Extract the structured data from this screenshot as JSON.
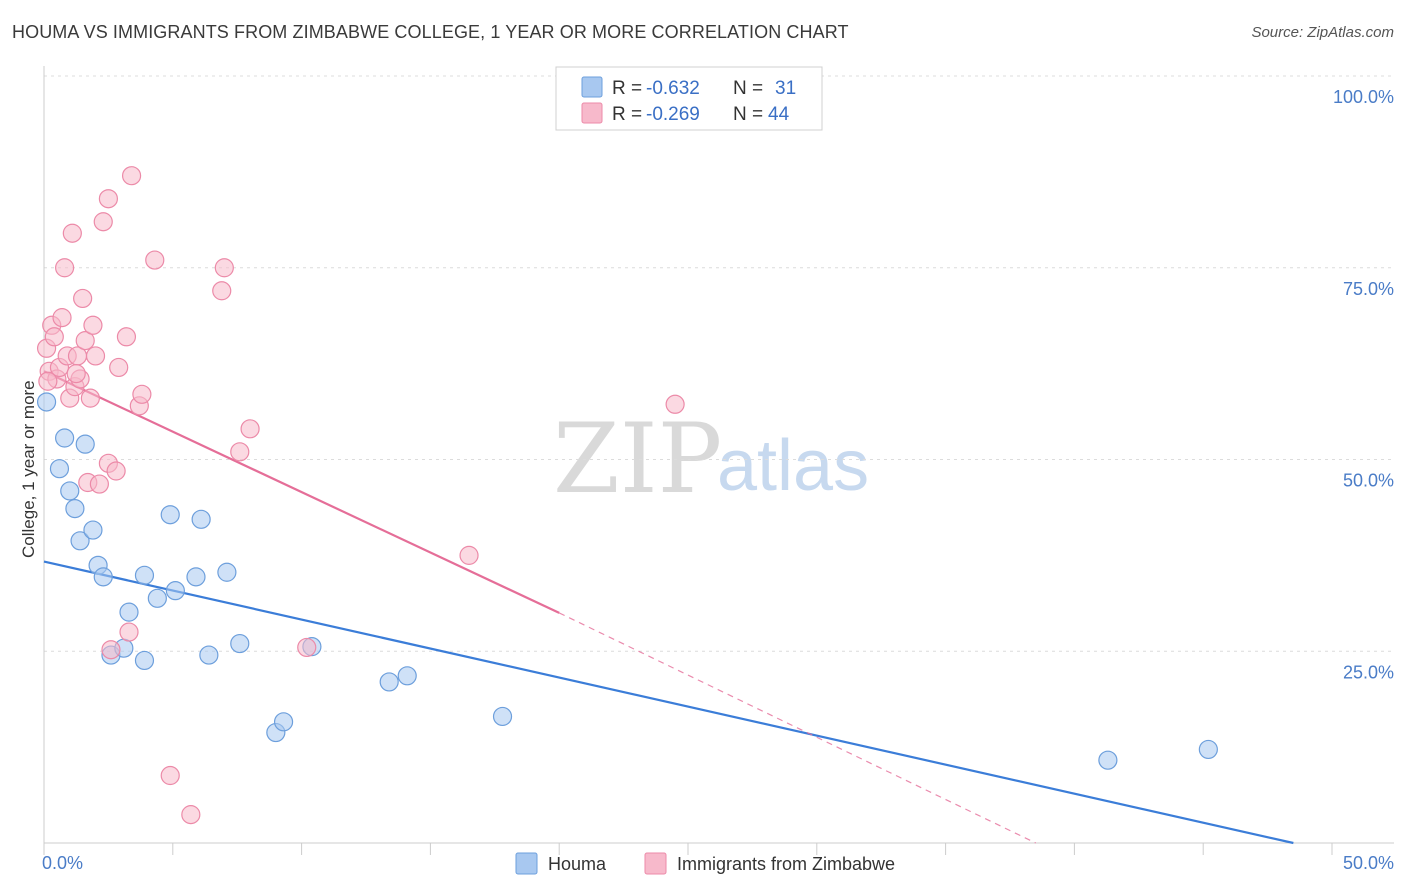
{
  "title": "HOUMA VS IMMIGRANTS FROM ZIMBABWE COLLEGE, 1 YEAR OR MORE CORRELATION CHART",
  "source": "Source: ZipAtlas.com",
  "watermark": {
    "zip": "ZIP",
    "atlas": "atlas"
  },
  "legend": {
    "rows": [
      {
        "r_label": "R =",
        "r_value": "-0.632",
        "n_label": "N =",
        "n_value": "31",
        "color": "#a8c8f0",
        "stroke": "#6d9fdc"
      },
      {
        "r_label": "R =",
        "r_value": "-0.269",
        "n_label": "N =",
        "n_value": "44",
        "color": "#f7b9cb",
        "stroke": "#ec8aa8"
      }
    ]
  },
  "chart_data": {
    "type": "scatter",
    "title": "HOUMA VS IMMIGRANTS FROM ZIMBABWE COLLEGE, 1 YEAR OR MORE CORRELATION CHART",
    "xlabel": "",
    "ylabel": "College, 1 year or more",
    "xlim": [
      0,
      50
    ],
    "ylim": [
      0,
      100
    ],
    "x_tick_labels": [
      "0.0%",
      "50.0%"
    ],
    "y_tick_labels": [
      "100.0%",
      "75.0%",
      "50.0%",
      "25.0%"
    ],
    "y_ticks": [
      100,
      75,
      50,
      25
    ],
    "series": [
      {
        "name": "Houma",
        "color": "#a8c8f0",
        "stroke": "#6d9fdc",
        "line_color": "#3b7dd8",
        "trend": {
          "x0": 0,
          "y0": 36.7,
          "x1": 48.5,
          "y1": 0,
          "dash_to": null
        },
        "points": [
          [
            0.1,
            57.5
          ],
          [
            0.6,
            48.8
          ],
          [
            0.8,
            52.8
          ],
          [
            1.0,
            45.9
          ],
          [
            1.2,
            43.6
          ],
          [
            1.4,
            39.4
          ],
          [
            1.6,
            52.0
          ],
          [
            1.9,
            40.8
          ],
          [
            2.1,
            36.2
          ],
          [
            2.3,
            34.7
          ],
          [
            2.6,
            24.5
          ],
          [
            3.1,
            25.4
          ],
          [
            3.3,
            30.1
          ],
          [
            3.9,
            23.8
          ],
          [
            3.9,
            34.9
          ],
          [
            4.4,
            31.9
          ],
          [
            4.9,
            42.8
          ],
          [
            5.1,
            32.9
          ],
          [
            5.9,
            34.7
          ],
          [
            6.1,
            42.2
          ],
          [
            6.4,
            24.5
          ],
          [
            7.1,
            35.3
          ],
          [
            7.6,
            26.0
          ],
          [
            9.0,
            14.4
          ],
          [
            9.3,
            15.8
          ],
          [
            10.4,
            25.6
          ],
          [
            13.4,
            21.0
          ],
          [
            14.1,
            21.8
          ],
          [
            17.8,
            16.5
          ],
          [
            41.3,
            10.8
          ],
          [
            45.2,
            12.2
          ]
        ]
      },
      {
        "name": "Immigrants from Zimbabwe",
        "color": "#f7b9cb",
        "stroke": "#ec8aa8",
        "line_color": "#e56e98",
        "trend": {
          "x0": 0,
          "y0": 61.5,
          "x1": 20.0,
          "y1": 30.0,
          "dash_to": [
            38.5,
            0
          ]
        },
        "points": [
          [
            0.1,
            64.5
          ],
          [
            0.2,
            61.5
          ],
          [
            0.3,
            67.5
          ],
          [
            0.4,
            66.0
          ],
          [
            0.5,
            60.5
          ],
          [
            0.6,
            62.0
          ],
          [
            0.7,
            68.5
          ],
          [
            0.8,
            75.0
          ],
          [
            0.9,
            63.5
          ],
          [
            1.0,
            58.0
          ],
          [
            1.1,
            79.5
          ],
          [
            1.2,
            59.5
          ],
          [
            1.3,
            63.5
          ],
          [
            1.4,
            60.5
          ],
          [
            1.5,
            71.0
          ],
          [
            1.6,
            65.5
          ],
          [
            1.7,
            47.0
          ],
          [
            1.8,
            58.0
          ],
          [
            1.9,
            67.5
          ],
          [
            2.0,
            63.5
          ],
          [
            2.3,
            81.0
          ],
          [
            2.5,
            84.0
          ],
          [
            2.5,
            49.5
          ],
          [
            2.6,
            25.2
          ],
          [
            2.8,
            48.5
          ],
          [
            2.9,
            62.0
          ],
          [
            3.2,
            66.0
          ],
          [
            3.3,
            27.5
          ],
          [
            3.4,
            87.0
          ],
          [
            3.7,
            57.0
          ],
          [
            3.8,
            58.5
          ],
          [
            4.3,
            76.0
          ],
          [
            4.9,
            8.8
          ],
          [
            5.7,
            3.7
          ],
          [
            6.9,
            72.0
          ],
          [
            7.0,
            75.0
          ],
          [
            7.6,
            51.0
          ],
          [
            8.0,
            54.0
          ],
          [
            10.2,
            25.5
          ],
          [
            16.5,
            37.5
          ],
          [
            24.5,
            57.2
          ],
          [
            0.15,
            60.2
          ],
          [
            1.25,
            61.2
          ],
          [
            2.15,
            46.8
          ]
        ]
      }
    ]
  }
}
